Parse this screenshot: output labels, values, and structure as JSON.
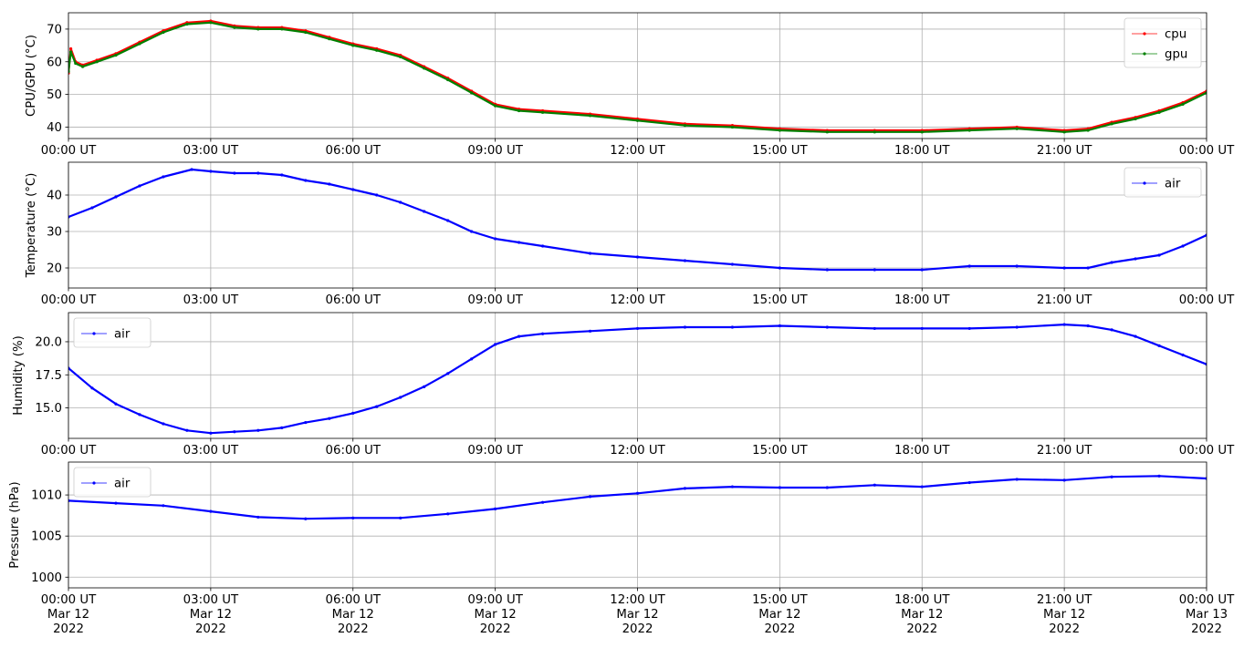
{
  "chart_data": [
    {
      "type": "line",
      "ylabel": "CPU/GPU (°C)",
      "ylim": [
        36.5,
        75
      ],
      "yticks": [
        40,
        50,
        60,
        70
      ],
      "grid": true,
      "legend": "top-right",
      "series": [
        {
          "name": "cpu",
          "color": "#ff0000",
          "points": [
            [
              0,
              56.5
            ],
            [
              0.05,
              64
            ],
            [
              0.15,
              60
            ],
            [
              0.3,
              59
            ],
            [
              0.6,
              60.5
            ],
            [
              1.0,
              62.5
            ],
            [
              1.5,
              66
            ],
            [
              2.0,
              69.5
            ],
            [
              2.5,
              72
            ],
            [
              3.0,
              72.5
            ],
            [
              3.5,
              71
            ],
            [
              4.0,
              70.5
            ],
            [
              4.5,
              70.5
            ],
            [
              5.0,
              69.5
            ],
            [
              5.5,
              67.5
            ],
            [
              6.0,
              65.5
            ],
            [
              6.5,
              64
            ],
            [
              7.0,
              62
            ],
            [
              7.5,
              58.5
            ],
            [
              8.0,
              55
            ],
            [
              8.5,
              51
            ],
            [
              9.0,
              47
            ],
            [
              9.5,
              45.5
            ],
            [
              10,
              45
            ],
            [
              11,
              44
            ],
            [
              12,
              42.5
            ],
            [
              13,
              41
            ],
            [
              14,
              40.5
            ],
            [
              15,
              39.5
            ],
            [
              16,
              39
            ],
            [
              17,
              39
            ],
            [
              18,
              39
            ],
            [
              19,
              39.5
            ],
            [
              20,
              40
            ],
            [
              21,
              39
            ],
            [
              21.5,
              39.5
            ],
            [
              22,
              41.5
            ],
            [
              22.5,
              43
            ],
            [
              23,
              45
            ],
            [
              23.5,
              47.5
            ],
            [
              24,
              51
            ]
          ]
        },
        {
          "name": "gpu",
          "color": "#008000",
          "points": [
            [
              0,
              57
            ],
            [
              0.05,
              63
            ],
            [
              0.15,
              59.5
            ],
            [
              0.3,
              58.5
            ],
            [
              0.6,
              60
            ],
            [
              1.0,
              62
            ],
            [
              1.5,
              65.5
            ],
            [
              2.0,
              69
            ],
            [
              2.5,
              71.5
            ],
            [
              3.0,
              72
            ],
            [
              3.5,
              70.5
            ],
            [
              4.0,
              70
            ],
            [
              4.5,
              70
            ],
            [
              5.0,
              69
            ],
            [
              5.5,
              67
            ],
            [
              6.0,
              65
            ],
            [
              6.5,
              63.5
            ],
            [
              7.0,
              61.5
            ],
            [
              7.5,
              58
            ],
            [
              8.0,
              54.5
            ],
            [
              8.5,
              50.5
            ],
            [
              9.0,
              46.5
            ],
            [
              9.5,
              45
            ],
            [
              10,
              44.5
            ],
            [
              11,
              43.5
            ],
            [
              12,
              42
            ],
            [
              13,
              40.5
            ],
            [
              14,
              40
            ],
            [
              15,
              39
            ],
            [
              16,
              38.5
            ],
            [
              17,
              38.5
            ],
            [
              18,
              38.5
            ],
            [
              19,
              39
            ],
            [
              20,
              39.5
            ],
            [
              21,
              38.5
            ],
            [
              21.5,
              39
            ],
            [
              22,
              41
            ],
            [
              22.5,
              42.5
            ],
            [
              23,
              44.5
            ],
            [
              23.5,
              47
            ],
            [
              24,
              50.5
            ]
          ]
        }
      ]
    },
    {
      "type": "line",
      "ylabel": "Temperature (°C)",
      "ylim": [
        14.5,
        49
      ],
      "yticks": [
        20,
        30,
        40
      ],
      "grid": true,
      "legend": "top-right",
      "series": [
        {
          "name": "air",
          "color": "#0000ff",
          "points": [
            [
              0,
              34
            ],
            [
              0.5,
              36.5
            ],
            [
              1.0,
              39.5
            ],
            [
              1.5,
              42.5
            ],
            [
              2.0,
              45
            ],
            [
              2.6,
              47
            ],
            [
              3.0,
              46.5
            ],
            [
              3.5,
              46
            ],
            [
              4.0,
              46
            ],
            [
              4.5,
              45.5
            ],
            [
              5.0,
              44
            ],
            [
              5.5,
              43
            ],
            [
              6.0,
              41.5
            ],
            [
              6.5,
              40
            ],
            [
              7.0,
              38
            ],
            [
              7.5,
              35.5
            ],
            [
              8.0,
              33
            ],
            [
              8.5,
              30
            ],
            [
              9.0,
              28
            ],
            [
              9.5,
              27
            ],
            [
              10,
              26
            ],
            [
              11,
              24
            ],
            [
              12,
              23
            ],
            [
              13,
              22
            ],
            [
              14,
              21
            ],
            [
              15,
              20
            ],
            [
              16,
              19.5
            ],
            [
              17,
              19.5
            ],
            [
              18,
              19.5
            ],
            [
              19,
              20.5
            ],
            [
              20,
              20.5
            ],
            [
              21,
              20
            ],
            [
              21.5,
              20
            ],
            [
              22,
              21.5
            ],
            [
              22.5,
              22.5
            ],
            [
              23,
              23.5
            ],
            [
              23.5,
              26
            ],
            [
              24,
              29
            ]
          ]
        }
      ]
    },
    {
      "type": "line",
      "ylabel": "Humidity (%)",
      "ylim": [
        12.7,
        22.2
      ],
      "yticks": [
        15.0,
        17.5,
        20.0
      ],
      "grid": true,
      "legend": "top-left",
      "series": [
        {
          "name": "air",
          "color": "#0000ff",
          "points": [
            [
              0,
              18
            ],
            [
              0.5,
              16.5
            ],
            [
              1.0,
              15.3
            ],
            [
              1.5,
              14.5
            ],
            [
              2.0,
              13.8
            ],
            [
              2.5,
              13.3
            ],
            [
              3.0,
              13.1
            ],
            [
              3.5,
              13.2
            ],
            [
              4.0,
              13.3
            ],
            [
              4.5,
              13.5
            ],
            [
              5.0,
              13.9
            ],
            [
              5.5,
              14.2
            ],
            [
              6.0,
              14.6
            ],
            [
              6.5,
              15.1
            ],
            [
              7.0,
              15.8
            ],
            [
              7.5,
              16.6
            ],
            [
              8.0,
              17.6
            ],
            [
              8.5,
              18.7
            ],
            [
              9.0,
              19.8
            ],
            [
              9.5,
              20.4
            ],
            [
              10,
              20.6
            ],
            [
              11,
              20.8
            ],
            [
              12,
              21.0
            ],
            [
              13,
              21.1
            ],
            [
              14,
              21.1
            ],
            [
              15,
              21.2
            ],
            [
              16,
              21.1
            ],
            [
              17,
              21.0
            ],
            [
              18,
              21.0
            ],
            [
              19,
              21.0
            ],
            [
              20,
              21.1
            ],
            [
              21,
              21.3
            ],
            [
              21.5,
              21.2
            ],
            [
              22,
              20.9
            ],
            [
              22.5,
              20.4
            ],
            [
              23,
              19.7
            ],
            [
              23.5,
              19.0
            ],
            [
              24,
              18.3
            ]
          ]
        }
      ]
    },
    {
      "type": "line",
      "ylabel": "Pressure (hPa)",
      "ylim": [
        998.7,
        1014
      ],
      "yticks": [
        1000,
        1005,
        1010
      ],
      "grid": true,
      "legend": "top-left",
      "series": [
        {
          "name": "air",
          "color": "#0000ff",
          "points": [
            [
              0,
              1009.3
            ],
            [
              1.0,
              1009.0
            ],
            [
              2.0,
              1008.7
            ],
            [
              3.0,
              1008.0
            ],
            [
              4.0,
              1007.3
            ],
            [
              5.0,
              1007.1
            ],
            [
              6.0,
              1007.2
            ],
            [
              7.0,
              1007.2
            ],
            [
              8.0,
              1007.7
            ],
            [
              9.0,
              1008.3
            ],
            [
              10,
              1009.1
            ],
            [
              11,
              1009.8
            ],
            [
              12,
              1010.2
            ],
            [
              13,
              1010.8
            ],
            [
              14,
              1011.0
            ],
            [
              15,
              1010.9
            ],
            [
              16,
              1010.9
            ],
            [
              17,
              1011.2
            ],
            [
              18,
              1011.0
            ],
            [
              19,
              1011.5
            ],
            [
              20,
              1011.9
            ],
            [
              21,
              1011.8
            ],
            [
              22,
              1012.2
            ],
            [
              23,
              1012.3
            ],
            [
              24,
              1012.0
            ]
          ]
        }
      ]
    }
  ],
  "x_axis": {
    "range": [
      0,
      24
    ],
    "tick_positions": [
      0,
      3,
      6,
      9,
      12,
      15,
      18,
      21,
      24
    ],
    "tick_labels": [
      "00:00 UT",
      "03:00 UT",
      "06:00 UT",
      "09:00 UT",
      "12:00 UT",
      "15:00 UT",
      "18:00 UT",
      "21:00 UT",
      "00:00 UT"
    ],
    "date_line": [
      "Mar 12",
      "Mar 12",
      "Mar 12",
      "Mar 12",
      "Mar 12",
      "Mar 12",
      "Mar 12",
      "Mar 12",
      "Mar 13"
    ],
    "year_line": [
      "2022",
      "2022",
      "2022",
      "2022",
      "2022",
      "2022",
      "2022",
      "2022",
      "2022"
    ]
  }
}
